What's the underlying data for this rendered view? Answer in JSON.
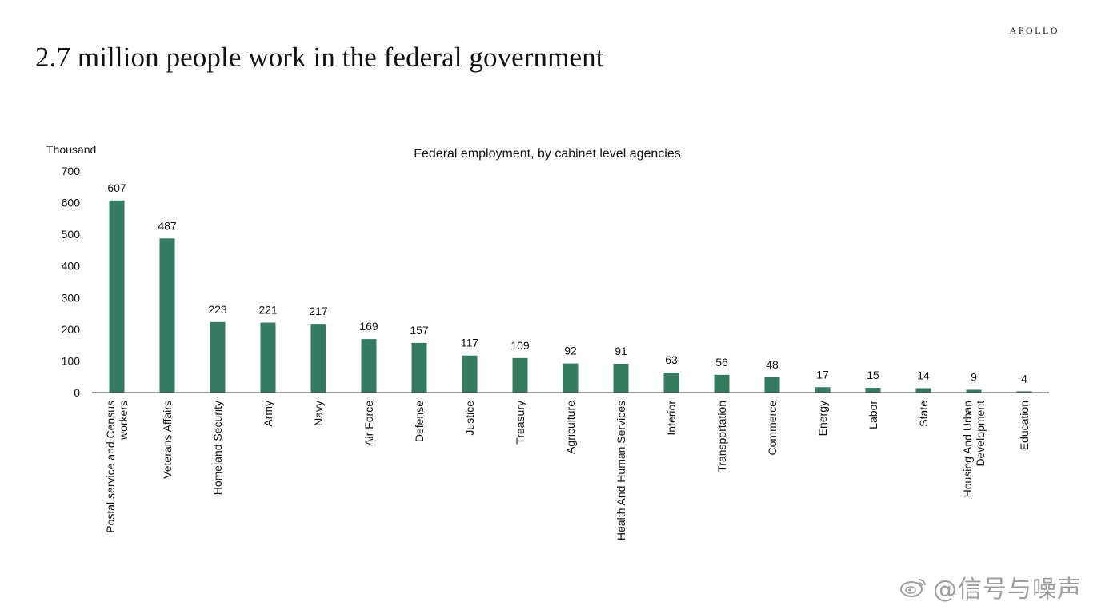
{
  "header": {
    "brand": "APOLLO",
    "title": "2.7 million people work in the federal government"
  },
  "watermark": {
    "text": "@信号与噪声",
    "icon": "weibo-logo-icon"
  },
  "colors": {
    "bar": "#357B62",
    "axis": "#333333",
    "text": "#111111"
  },
  "chart_data": {
    "type": "bar",
    "title": "Federal employment, by cabinet level agencies",
    "ylabel": "Thousand",
    "xlabel": "",
    "ylim": [
      0,
      700
    ],
    "yticks": [
      0,
      100,
      200,
      300,
      400,
      500,
      600,
      700
    ],
    "grid": false,
    "categories": [
      "Postal service and Census workers",
      "Veterans Affairs",
      "Homeland Security",
      "Army",
      "Navy",
      "Air Force",
      "Defense",
      "Justice",
      "Treasury",
      "Agriculture",
      "Health And Human Services",
      "Interior",
      "Transportation",
      "Commerce",
      "Energy",
      "Labor",
      "State",
      "Housing And Urban Development",
      "Education"
    ],
    "values": [
      607,
      487,
      223,
      221,
      217,
      169,
      157,
      117,
      109,
      92,
      91,
      63,
      56,
      48,
      17,
      15,
      14,
      9,
      4
    ]
  }
}
